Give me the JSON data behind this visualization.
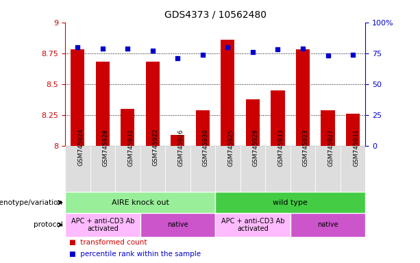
{
  "title": "GDS4373 / 10562480",
  "samples": [
    "GSM745924",
    "GSM745928",
    "GSM745932",
    "GSM745922",
    "GSM745926",
    "GSM745930",
    "GSM745925",
    "GSM745929",
    "GSM745933",
    "GSM745923",
    "GSM745927",
    "GSM745931"
  ],
  "transformed_count": [
    8.78,
    8.68,
    8.3,
    8.68,
    8.09,
    8.29,
    8.86,
    8.38,
    8.45,
    8.78,
    8.29,
    8.26
  ],
  "percentile_rank": [
    80,
    79,
    79,
    77,
    71,
    74,
    80,
    76,
    78,
    79,
    73,
    74
  ],
  "bar_color": "#cc0000",
  "dot_color": "#0000cc",
  "ylim_left": [
    8.0,
    9.0
  ],
  "ylim_right": [
    0,
    100
  ],
  "yticks_left": [
    8.0,
    8.25,
    8.5,
    8.75,
    9.0
  ],
  "ytick_labels_left": [
    "8",
    "8.25",
    "8.5",
    "8.75",
    "9"
  ],
  "yticks_right": [
    0,
    25,
    50,
    75,
    100
  ],
  "ytick_labels_right": [
    "0",
    "25",
    "50",
    "75",
    "100%"
  ],
  "hlines": [
    8.25,
    8.5,
    8.75
  ],
  "genotype_groups": [
    {
      "label": "AIRE knock out",
      "start": 0,
      "end": 6,
      "color": "#99ee99"
    },
    {
      "label": "wild type",
      "start": 6,
      "end": 12,
      "color": "#44cc44"
    }
  ],
  "protocol_groups": [
    {
      "label": "APC + anti-CD3 Ab\nactivated",
      "start": 0,
      "end": 3,
      "color": "#ffbbff"
    },
    {
      "label": "native",
      "start": 3,
      "end": 6,
      "color": "#cc55cc"
    },
    {
      "label": "APC + anti-CD3 Ab\nactivated",
      "start": 6,
      "end": 9,
      "color": "#ffbbff"
    },
    {
      "label": "native",
      "start": 9,
      "end": 12,
      "color": "#cc55cc"
    }
  ],
  "left_labels": [
    "genotype/variation",
    "protocol"
  ],
  "legend_items": [
    {
      "label": "transformed count",
      "color": "#cc0000"
    },
    {
      "label": "percentile rank within the sample",
      "color": "#0000cc"
    }
  ],
  "bar_width": 0.55,
  "sample_bg_color": "#dddddd",
  "spine_color": "#000000"
}
